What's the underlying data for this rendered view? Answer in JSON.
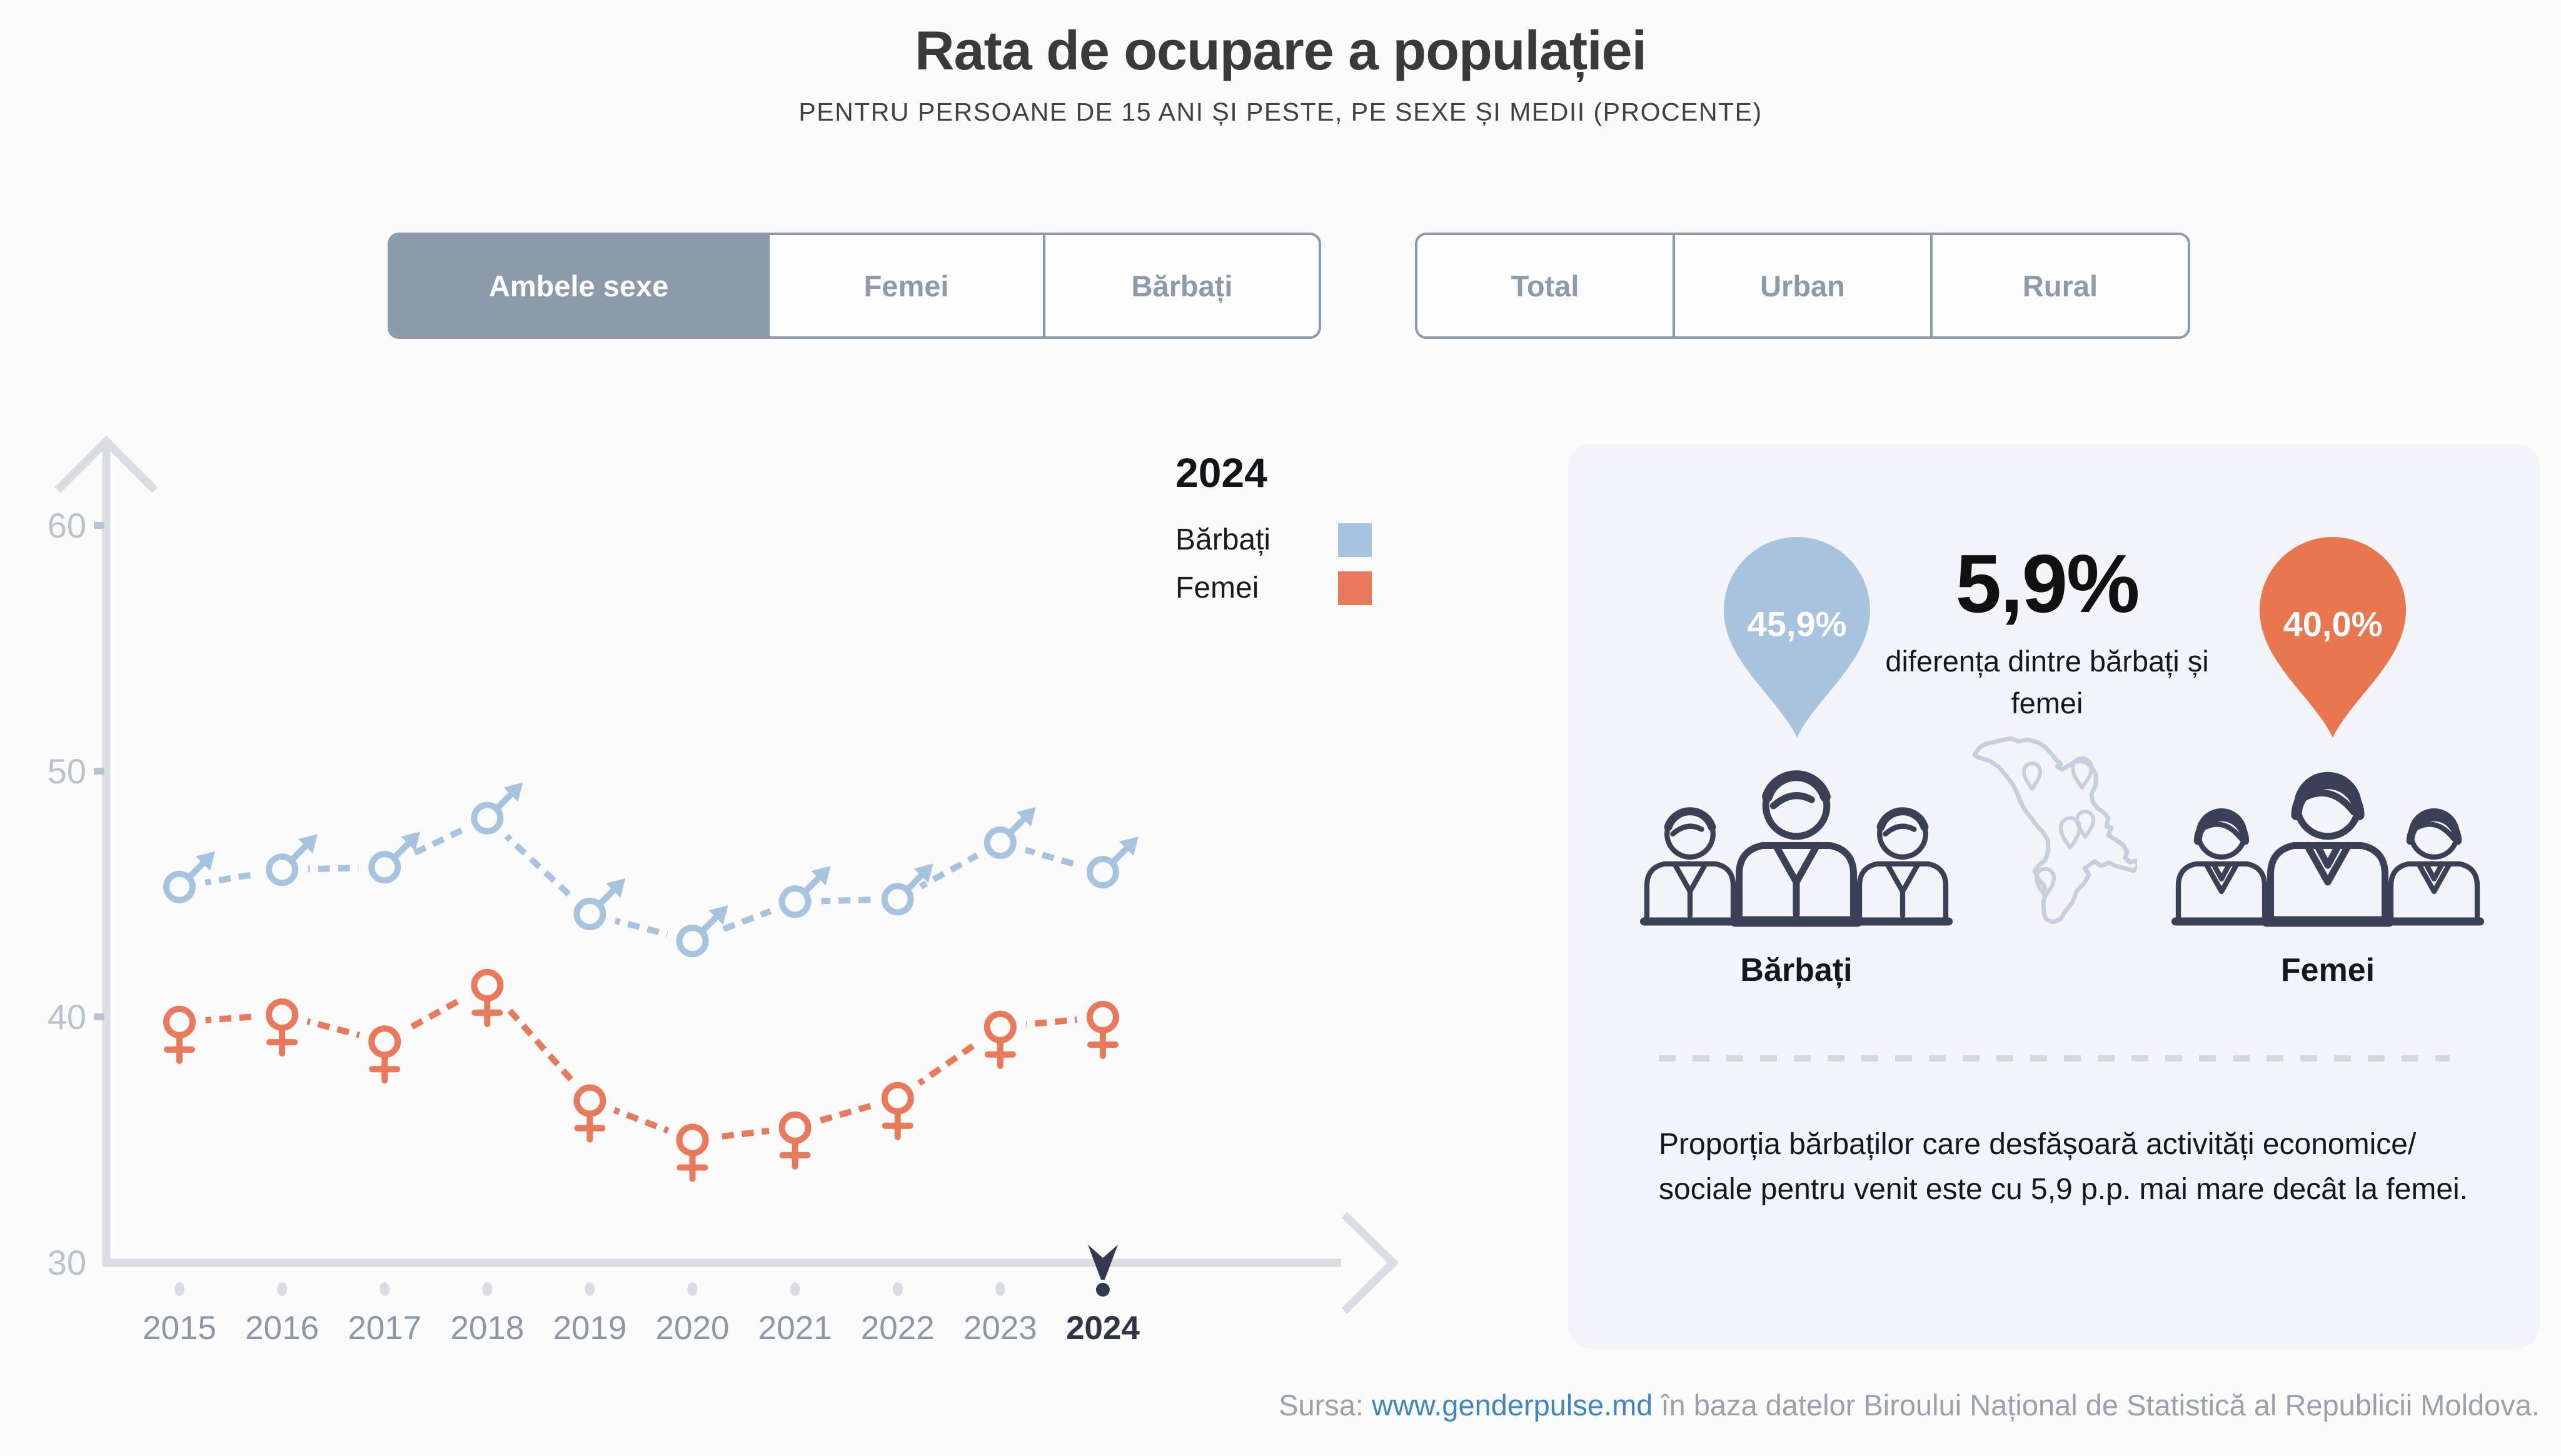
{
  "header": {
    "title": "Rata de ocupare a populației",
    "subtitle": "PENTRU PERSOANE DE 15 ANI ȘI PESTE, PE SEXE ȘI MEDII (PROCENTE)"
  },
  "filters": {
    "sex": {
      "options": [
        {
          "label": "Ambele sexe",
          "active": true
        },
        {
          "label": "Femei",
          "active": false
        },
        {
          "label": "Bărbați",
          "active": false
        }
      ]
    },
    "area": {
      "options": [
        {
          "label": "Total",
          "active": false
        },
        {
          "label": "Urban",
          "active": false
        },
        {
          "label": "Rural",
          "active": false
        }
      ]
    }
  },
  "legend": {
    "year": "2024",
    "items": [
      {
        "label": "Bărbați",
        "color": "#A6C3DF"
      },
      {
        "label": "Femei",
        "color": "#E8795B"
      }
    ]
  },
  "chart_data": {
    "type": "line",
    "x": [
      2015,
      2016,
      2017,
      2018,
      2019,
      2020,
      2021,
      2022,
      2023,
      2024
    ],
    "series": [
      {
        "name": "Bărbați",
        "marker": "male",
        "color": "#A6C3DF",
        "values": [
          45.3,
          46.0,
          46.1,
          48.1,
          44.2,
          43.1,
          44.7,
          44.8,
          47.1,
          45.9
        ]
      },
      {
        "name": "Femei",
        "marker": "female",
        "color": "#E8795B",
        "values": [
          39.8,
          40.1,
          39.0,
          41.3,
          36.6,
          35.0,
          35.5,
          36.7,
          39.6,
          40.0
        ]
      }
    ],
    "ylim": [
      30,
      63
    ],
    "yticks": [
      30,
      40,
      50,
      60
    ],
    "highlight_year": 2024,
    "grid": false,
    "line_style": "dashed",
    "legend_position": "top-right"
  },
  "panel": {
    "male_value": "45,9%",
    "female_value": "40,0%",
    "diff_value": "5,9%",
    "diff_caption": "diferența dintre bărbați și femei",
    "male_group_label": "Bărbați",
    "female_group_label": "Femei",
    "note": "Proporția bărbaților care desfășoară activități economice/ sociale pentru venit este cu 5,9 p.p. mai mare decât la femei."
  },
  "footer": {
    "prefix": "Sursa:",
    "link": "www.genderpulse.md",
    "suffix": "în baza datelor Biroului Național de Statistică al Republicii Moldova."
  },
  "colors": {
    "accent_blue": "#A6C3DF",
    "accent_orange": "#E8795B",
    "pin_blue": "#A8C3DE",
    "pin_orange": "#E8764F",
    "highlight_navy": "#333A50",
    "icon_navy": "#3A4156",
    "axis_gray": "#D9DEE3",
    "tick_label_gray": "#B9C3CD",
    "year_label_gray": "#8D98A6",
    "button_gray": "#8B9BA9",
    "map_gray": "#C5D0DC",
    "panel_bg": "#F2F4F7",
    "page_bg": "#FBFBFB"
  }
}
